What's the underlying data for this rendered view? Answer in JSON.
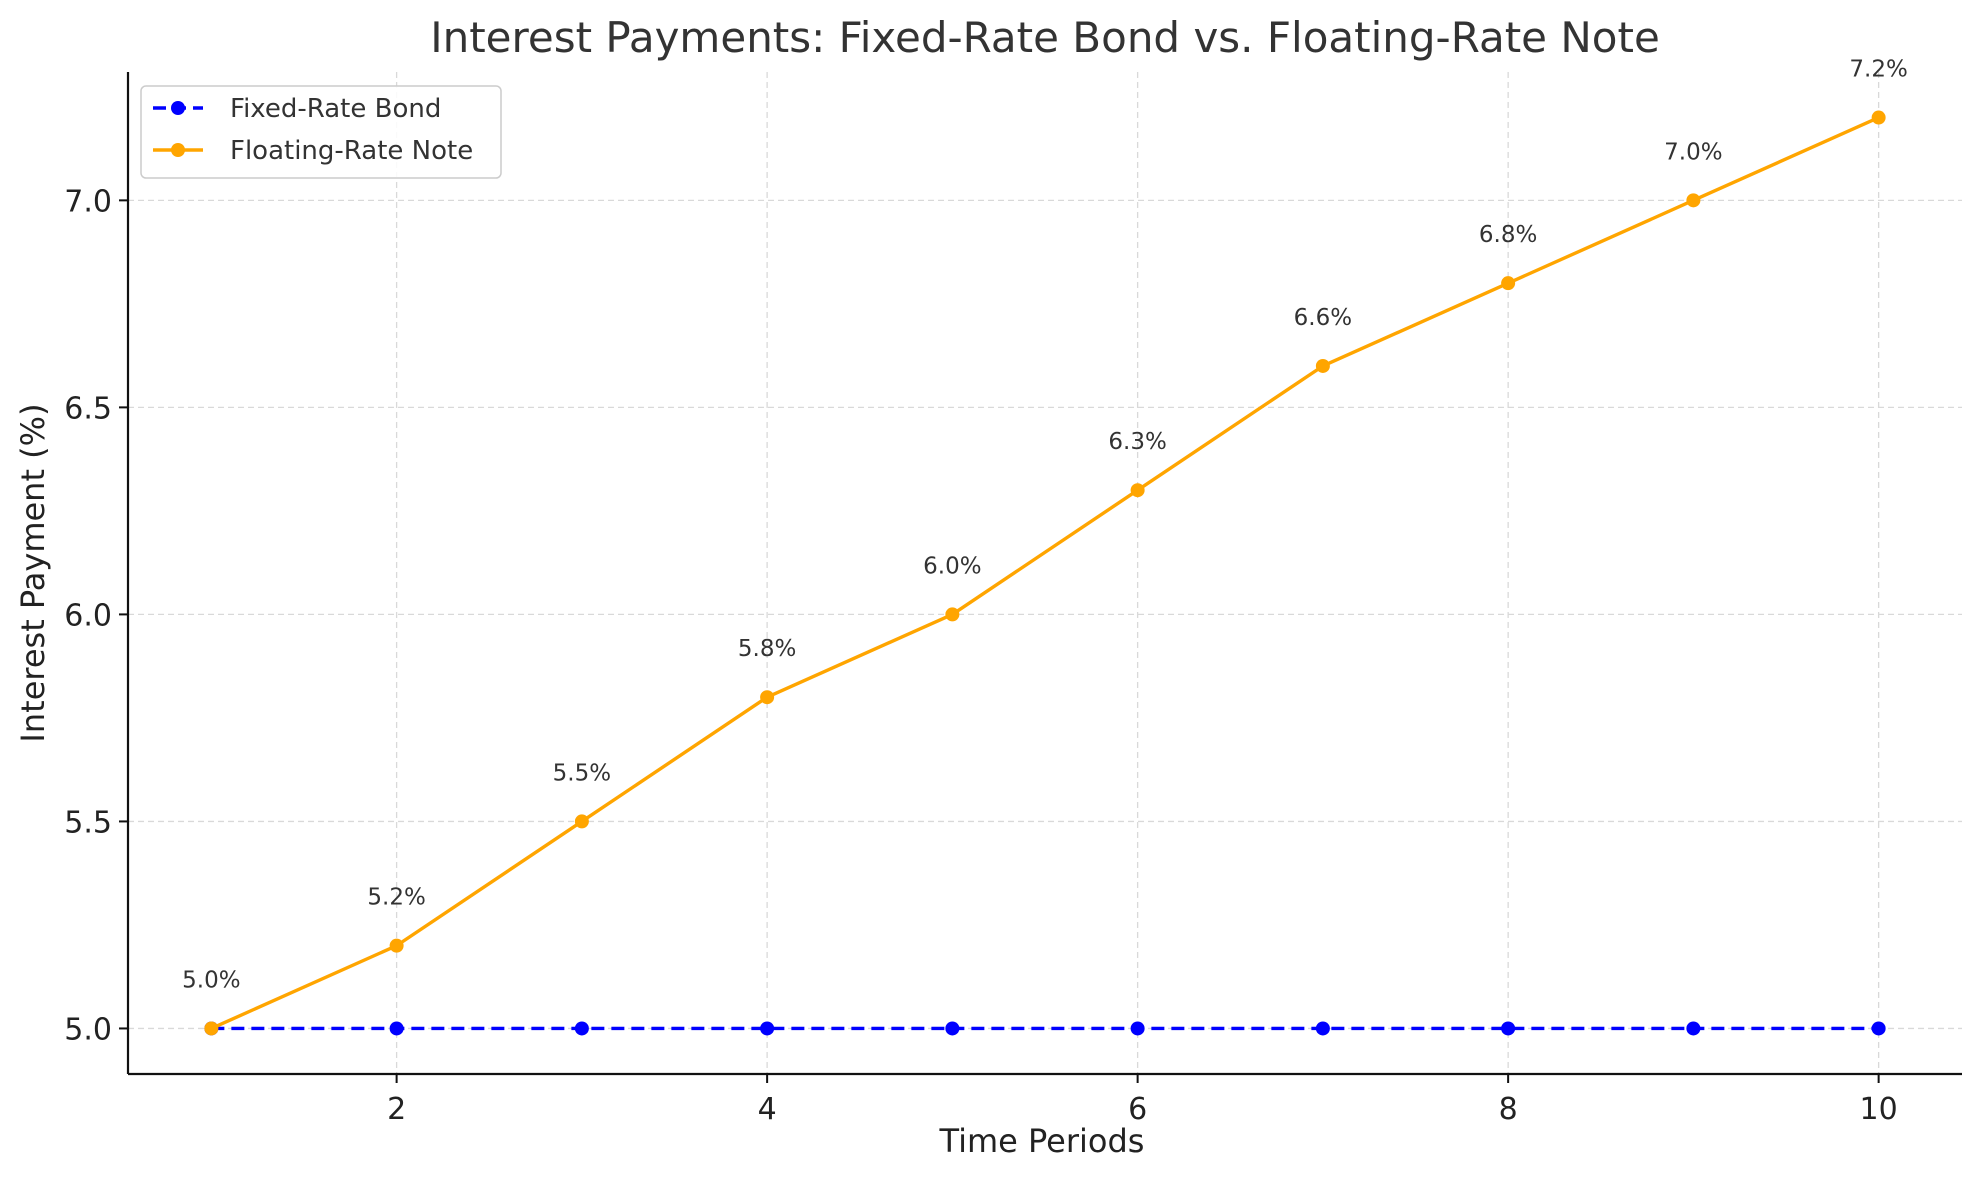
{
  "chart_data": {
    "type": "line",
    "title": "Interest Payments: Fixed-Rate Bond vs. Floating-Rate Note",
    "xlabel": "Time Periods",
    "ylabel": "Interest Payment (%)",
    "x": [
      1,
      2,
      3,
      4,
      5,
      6,
      7,
      8,
      9,
      10
    ],
    "xlim": [
      0.55,
      10.45
    ],
    "ylim": [
      4.89,
      7.31
    ],
    "xticks": [
      2,
      4,
      6,
      8,
      10
    ],
    "xtick_labels": [
      "2",
      "4",
      "6",
      "8",
      "10"
    ],
    "yticks": [
      5.0,
      5.5,
      6.0,
      6.5,
      7.0
    ],
    "ytick_labels": [
      "5.0",
      "5.5",
      "6.0",
      "6.5",
      "7.0"
    ],
    "grid": true,
    "legend_position": "top-left",
    "series": [
      {
        "name": "Fixed-Rate Bond",
        "values": [
          5.0,
          5.0,
          5.0,
          5.0,
          5.0,
          5.0,
          5.0,
          5.0,
          5.0,
          5.0
        ],
        "color": "#0000ff",
        "line_style": "dashed",
        "marker": "circle"
      },
      {
        "name": "Floating-Rate Note",
        "values": [
          5.0,
          5.2,
          5.5,
          5.8,
          6.0,
          6.3,
          6.6,
          6.8,
          7.0,
          7.2
        ],
        "color": "#ffa500",
        "line_style": "solid",
        "marker": "circle",
        "data_labels": [
          "5.0%",
          "5.2%",
          "5.5%",
          "5.8%",
          "6.0%",
          "6.3%",
          "6.6%",
          "6.8%",
          "7.0%",
          "7.2%"
        ]
      }
    ]
  }
}
